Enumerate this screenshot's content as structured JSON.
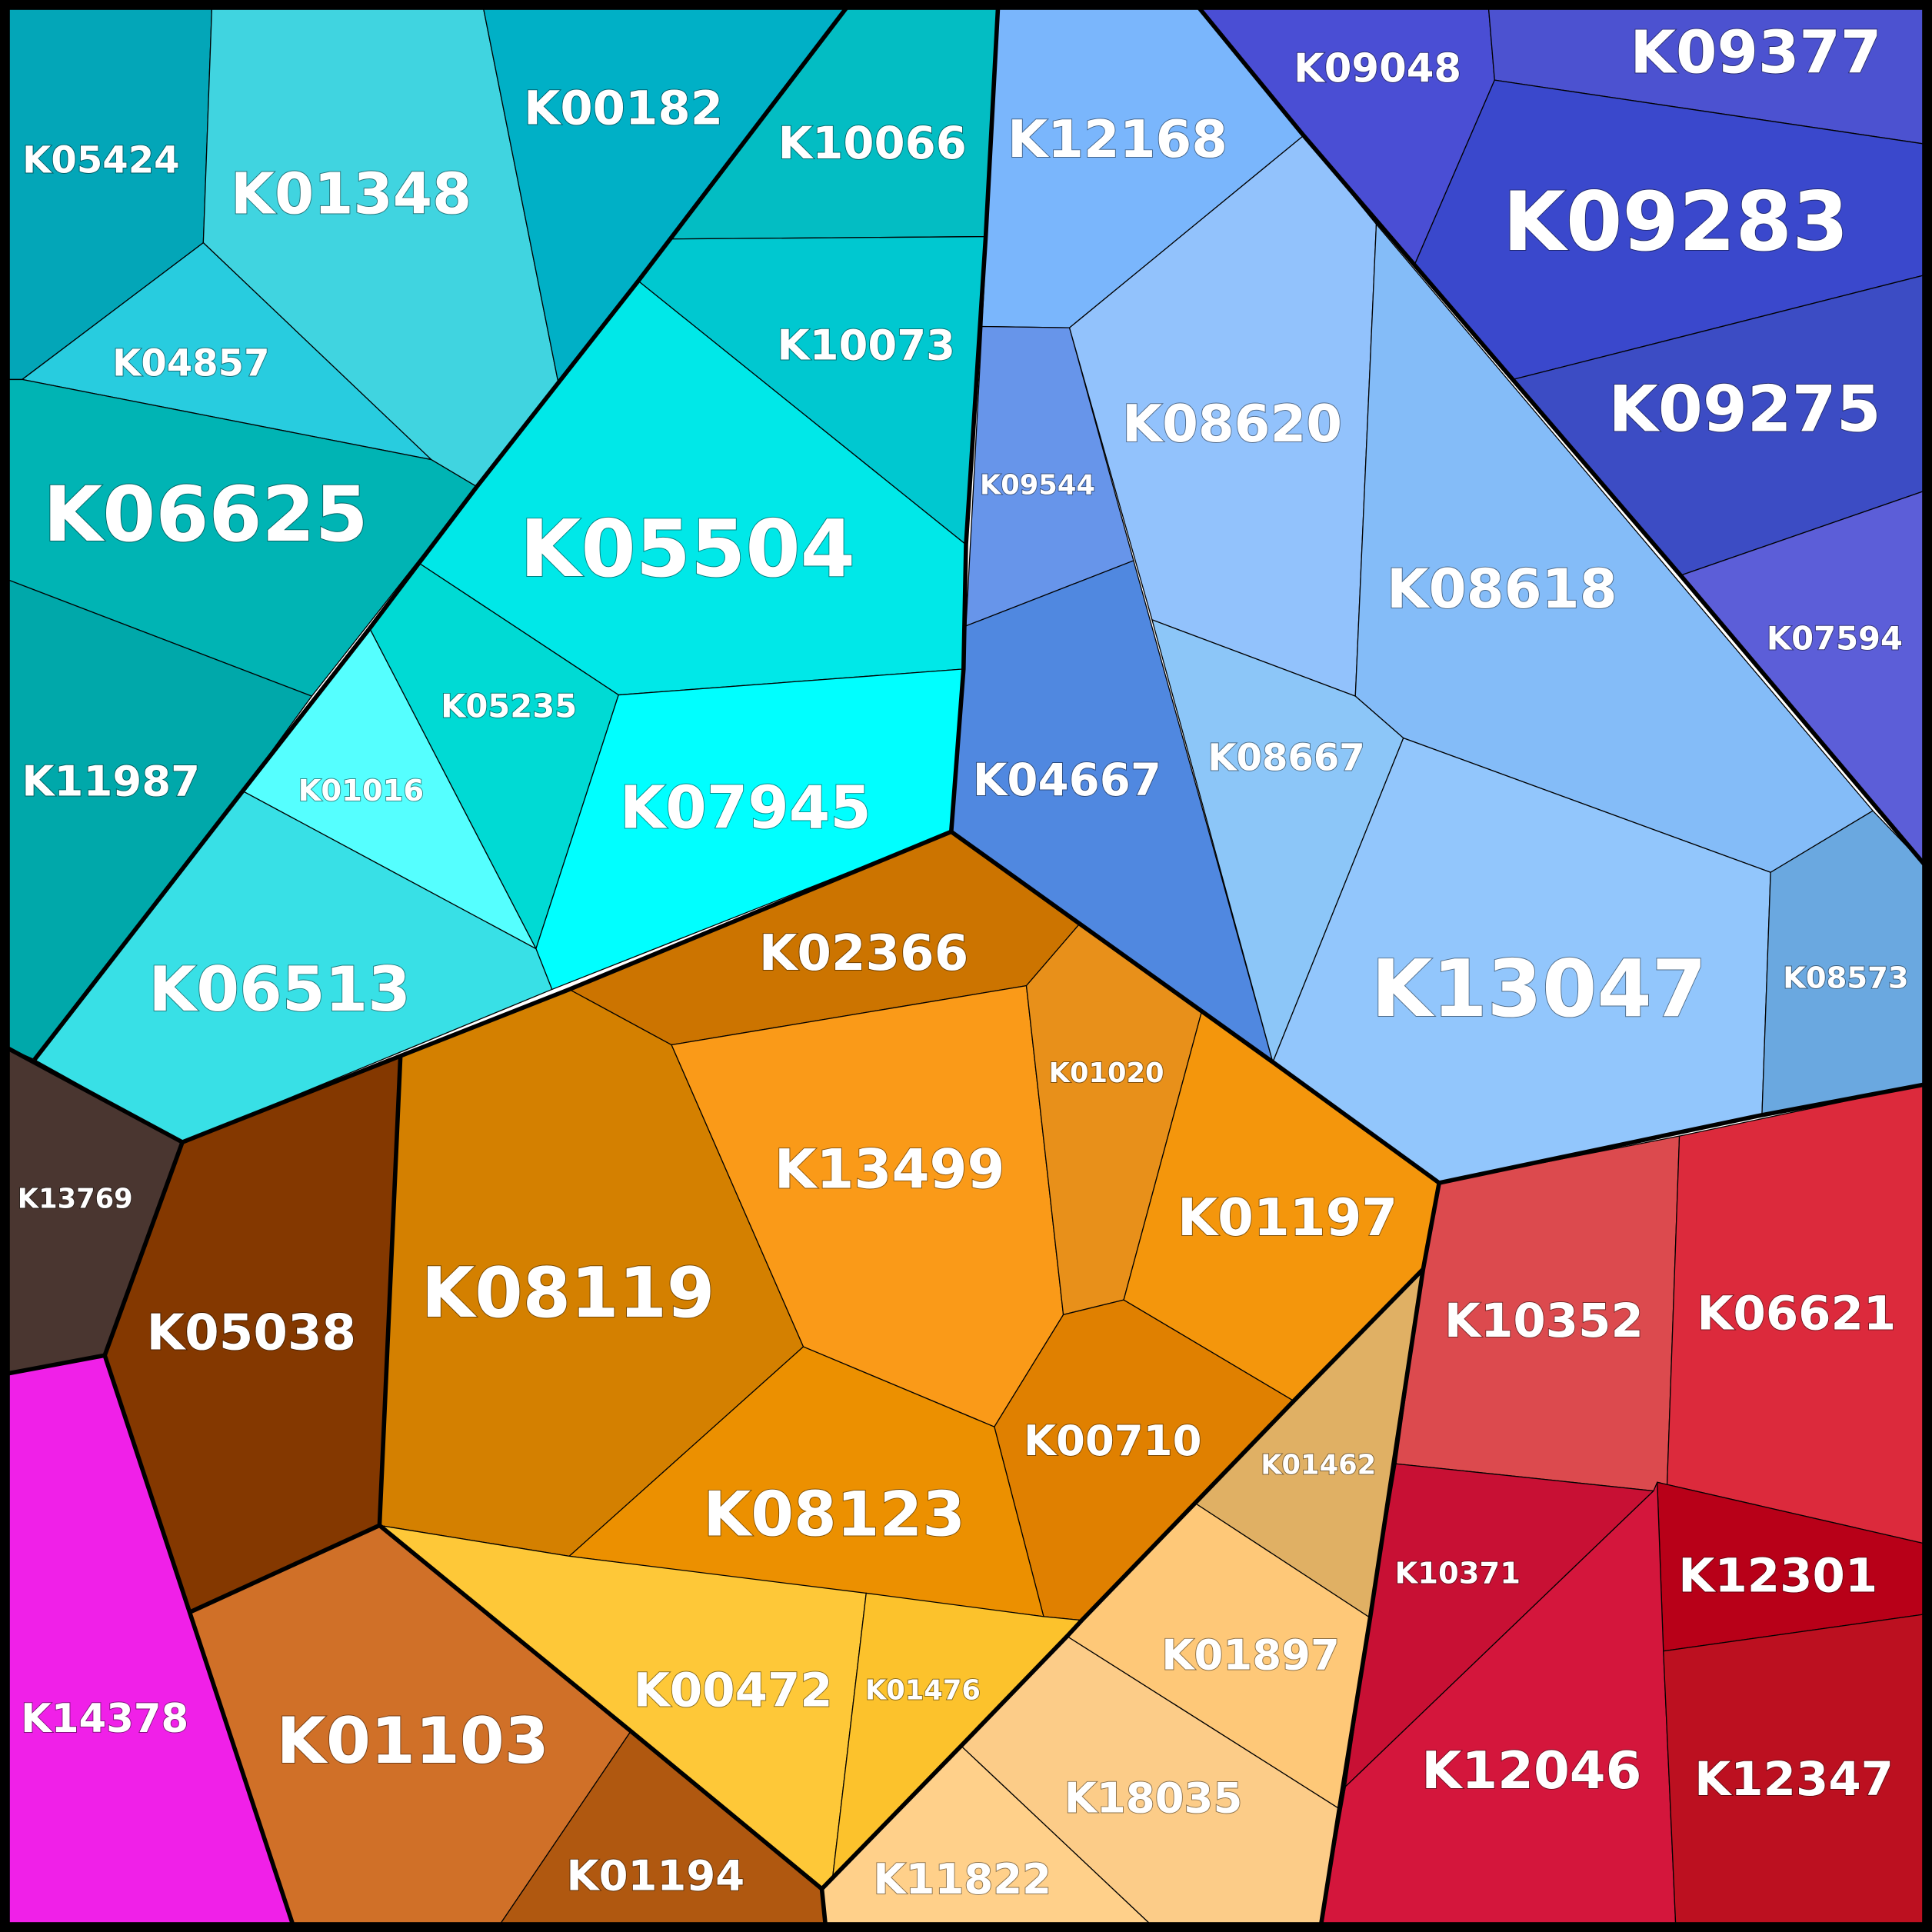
{
  "cells": [
    {
      "label": "K05424"
    },
    {
      "label": "K01348"
    },
    {
      "label": "K00182"
    },
    {
      "label": "K10066"
    },
    {
      "label": "K10073"
    },
    {
      "label": "K04857"
    },
    {
      "label": "K06625"
    },
    {
      "label": "K11987"
    },
    {
      "label": "K05504"
    },
    {
      "label": "K05235"
    },
    {
      "label": "K01016"
    },
    {
      "label": "K07945"
    },
    {
      "label": "K06513"
    },
    {
      "label": "K12168"
    },
    {
      "label": "K09544"
    },
    {
      "label": "K04667"
    },
    {
      "label": "K08620"
    },
    {
      "label": "K08618"
    },
    {
      "label": "K08667"
    },
    {
      "label": "K13047"
    },
    {
      "label": "K08573"
    },
    {
      "label": "K09048"
    },
    {
      "label": "K09377"
    },
    {
      "label": "K09283"
    },
    {
      "label": "K09275"
    },
    {
      "label": "K07594"
    },
    {
      "label": "K10352"
    },
    {
      "label": "K06621"
    },
    {
      "label": "K10371"
    },
    {
      "label": "K12301"
    },
    {
      "label": "K12046"
    },
    {
      "label": "K12347"
    },
    {
      "label": "K02366"
    },
    {
      "label": "K08119"
    },
    {
      "label": "K13499"
    },
    {
      "label": "K01020"
    },
    {
      "label": "K01197"
    },
    {
      "label": "K00710"
    },
    {
      "label": "K08123"
    },
    {
      "label": "K00472"
    },
    {
      "label": "K01476"
    },
    {
      "label": "K01462"
    },
    {
      "label": "K01897"
    },
    {
      "label": "K18035"
    },
    {
      "label": "K11822"
    },
    {
      "label": "K13769"
    },
    {
      "label": "K05038"
    },
    {
      "label": "K14378"
    },
    {
      "label": "K01103"
    },
    {
      "label": "K01194"
    }
  ]
}
